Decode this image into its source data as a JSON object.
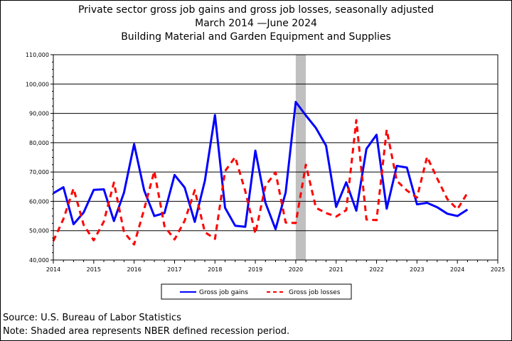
{
  "page": {
    "title": "Private sector gross job gains and gross job losses, seasonally adjusted",
    "subtitle_period": "March 2014 —June 2024",
    "subtitle_industry": "Building Material and Garden Equipment and Supplies",
    "source": "Source: U.S. Bureau of Labor Statistics",
    "note": "Note: Shaded area represents NBER defined recession period."
  },
  "chart_data": {
    "type": "line",
    "title": "Private sector gross job gains and gross job losses, seasonally adjusted",
    "xlabel": "",
    "ylabel": "",
    "xlim": [
      2014,
      2025
    ],
    "ylim": [
      40000,
      110000
    ],
    "x_ticks": [
      2014,
      2015,
      2016,
      2017,
      2018,
      2019,
      2020,
      2021,
      2022,
      2023,
      2024,
      2025
    ],
    "y_ticks": [
      40000,
      50000,
      60000,
      70000,
      80000,
      90000,
      100000,
      110000
    ],
    "y_tick_labels": [
      "40,000",
      "50,000",
      "60,000",
      "70,000",
      "80,000",
      "90,000",
      "100,000",
      "110,000"
    ],
    "grid": "horizontal",
    "legend_position": "bottom",
    "recession": [
      2020.0,
      2020.25
    ],
    "x": [
      2014.0,
      2014.25,
      2014.5,
      2014.75,
      2015.0,
      2015.25,
      2015.5,
      2015.75,
      2016.0,
      2016.25,
      2016.5,
      2016.75,
      2017.0,
      2017.25,
      2017.5,
      2017.75,
      2018.0,
      2018.25,
      2018.5,
      2018.75,
      2019.0,
      2019.25,
      2019.5,
      2019.75,
      2020.0,
      2020.25,
      2020.5,
      2020.75,
      2021.0,
      2021.25,
      2021.5,
      2021.75,
      2022.0,
      2022.25,
      2022.5,
      2022.75,
      2023.0,
      2023.25,
      2023.5,
      2023.75,
      2024.0,
      2024.25
    ],
    "series": [
      {
        "name": "Gross job gains",
        "color": "#0000ff",
        "style": "solid",
        "values": [
          62800,
          64800,
          52200,
          56200,
          63900,
          64100,
          53300,
          63000,
          79500,
          63700,
          55000,
          56000,
          69000,
          64700,
          53000,
          67000,
          89400,
          57800,
          51700,
          51300,
          77300,
          59500,
          50500,
          63000,
          93900,
          89300,
          85000,
          79000,
          58100,
          66500,
          56800,
          77900,
          82700,
          57500,
          72100,
          71500,
          59000,
          59500,
          58000,
          55800,
          55000,
          57200
        ]
      },
      {
        "name": "Gross job losses",
        "color": "#ff0000",
        "style": "dashed",
        "values": [
          46500,
          54000,
          64400,
          52000,
          46700,
          53100,
          66400,
          49500,
          45300,
          57400,
          70300,
          51500,
          47000,
          53400,
          63800,
          49500,
          47200,
          70300,
          75100,
          63500,
          49000,
          65300,
          69900,
          52800,
          52600,
          72500,
          57800,
          56000,
          54800,
          57000,
          87700,
          53800,
          53600,
          84400,
          67000,
          63700,
          61300,
          75200,
          67800,
          60800,
          57300,
          62900
        ]
      }
    ]
  }
}
